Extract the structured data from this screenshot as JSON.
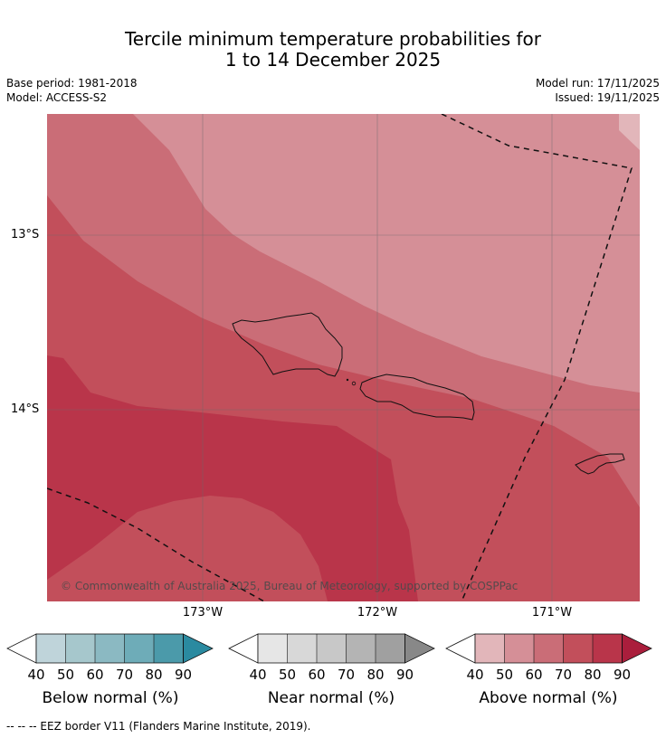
{
  "title_line1": "Tercile minimum temperature probabilities for",
  "title_line2": "1 to 14 December 2025",
  "meta_left": [
    "Base period: 1981-2018",
    "Model: ACCESS-S2"
  ],
  "meta_right": [
    "Model run: 17/11/2025",
    "Issued: 19/11/2025"
  ],
  "lat_labels": [
    "13°S",
    "14°S"
  ],
  "lon_labels": [
    "173°W",
    "172°W",
    "171°W"
  ],
  "copyright": "© Commonwealth of Australia 2025, Bureau of Meteorology, supported by COSPPac",
  "footnote": "--  --  -- EEZ border V11 (Flanders Marine Institute, 2019).",
  "colorbars": [
    {
      "title": "Below normal (%)",
      "ticks": [
        "40",
        "50",
        "60",
        "70",
        "80",
        "90"
      ],
      "colors": [
        "#ffffff",
        "#bfd4da",
        "#a6c7cc",
        "#8bb9c2",
        "#6eacb8",
        "#4b9aaa",
        "#2a8aa0"
      ]
    },
    {
      "title": "Near normal (%)",
      "ticks": [
        "40",
        "50",
        "60",
        "70",
        "80",
        "90"
      ],
      "colors": [
        "#ffffff",
        "#e6e6e6",
        "#d8d8d8",
        "#c8c8c8",
        "#b4b4b4",
        "#a0a0a0",
        "#888888"
      ]
    },
    {
      "title": "Above normal (%)",
      "ticks": [
        "40",
        "50",
        "60",
        "70",
        "80",
        "90"
      ],
      "colors": [
        "#ffffff",
        "#e2b6ba",
        "#d58f97",
        "#ca6d77",
        "#c24f5b",
        "#b9354a",
        "#aa1e3c"
      ]
    }
  ],
  "map_colors": {
    "above_40_50": "#e2b6ba",
    "above_50_60": "#d58f97",
    "above_60_70": "#ca6d77",
    "above_70_80": "#c24f5b",
    "above_80_90": "#b9354a"
  }
}
